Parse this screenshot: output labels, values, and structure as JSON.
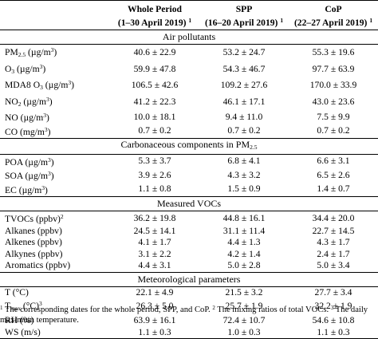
{
  "header": {
    "col1": {
      "title": "Whole Period",
      "sub": "(1–30 April 2019)",
      "note": "1"
    },
    "col2": {
      "title": "SPP",
      "sub": "(16–20 April 2019)",
      "note": "1"
    },
    "col3": {
      "title": "CoP",
      "sub": "(22–27 April 2019)",
      "note": "1"
    }
  },
  "sections": [
    {
      "title": "Air pollutants",
      "rows": [
        {
          "pre": "PM",
          "sub": "2.5",
          "post": " (µg/m",
          "sup": "3",
          "tail": ")",
          "v1": "40.6 ± 22.9",
          "v2": "53.2 ± 24.7",
          "v3": "55.3 ± 19.6"
        },
        {
          "pre": "O",
          "sub": "3",
          "post": " (µg/m",
          "sup": "3",
          "tail": ")",
          "v1": "59.9 ± 47.8",
          "v2": "54.3 ± 46.7",
          "v3": "97.7 ± 63.9"
        },
        {
          "pre": "MDA8 O",
          "sub": "3",
          "post": " (µg/m",
          "sup": "3",
          "tail": ")",
          "v1": "106.5 ± 42.6",
          "v2": "109.2 ± 27.6",
          "v3": "170.0 ± 33.9"
        },
        {
          "pre": "NO",
          "sub": "2",
          "post": " (µg/m",
          "sup": "3",
          "tail": ")",
          "v1": "41.2 ± 22.3",
          "v2": "46.1 ± 17.1",
          "v3": "43.0 ± 23.6"
        },
        {
          "pre": "NO (µg/m",
          "sub": "",
          "post": "",
          "sup": "3",
          "tail": ")",
          "v1": "10.0 ± 18.1",
          "v2": "9.4 ± 11.0",
          "v3": "7.5 ± 9.9"
        },
        {
          "pre": "CO (mg/m",
          "sub": "",
          "post": "",
          "sup": "3",
          "tail": ")",
          "v1": "0.7 ± 0.2",
          "v2": "0.7 ± 0.2",
          "v3": "0.7 ± 0.2"
        }
      ]
    },
    {
      "title_pre": "Carbonaceous components in PM",
      "title_sub": "2.5",
      "rows": [
        {
          "pre": "POA (µg/m",
          "sub": "",
          "post": "",
          "sup": "3",
          "tail": ")",
          "v1": "5.3 ± 3.7",
          "v2": "6.8 ± 4.1",
          "v3": "6.6 ± 3.1"
        },
        {
          "pre": "SOA (µg/m",
          "sub": "",
          "post": "",
          "sup": "3",
          "tail": ")",
          "v1": "3.9 ± 2.6",
          "v2": "4.3 ± 3.2",
          "v3": "6.5 ± 2.6"
        },
        {
          "pre": "EC (µg/m",
          "sub": "",
          "post": "",
          "sup": "3",
          "tail": ")",
          "v1": "1.1 ± 0.8",
          "v2": "1.5 ± 0.9",
          "v3": "1.4 ± 0.7"
        }
      ]
    },
    {
      "title": "Measured VOCs",
      "rows": [
        {
          "pre": "TVOCs (ppbv)",
          "sub": "",
          "post": "",
          "sup": "2",
          "tail": "",
          "v1": "36.2 ± 19.8",
          "v2": "44.8 ± 16.1",
          "v3": "34.4 ± 20.0"
        },
        {
          "pre": "Alkanes (ppbv)",
          "sub": "",
          "post": "",
          "sup": "",
          "tail": "",
          "v1": "24.5 ± 14.1",
          "v2": "31.1 ± 11.4",
          "v3": "22.7 ± 14.5"
        },
        {
          "pre": "Alkenes (ppbv)",
          "sub": "",
          "post": "",
          "sup": "",
          "tail": "",
          "v1": "4.1 ± 1.7",
          "v2": "4.4 ± 1.3",
          "v3": "4.3 ± 1.7"
        },
        {
          "pre": "Alkynes (ppbv)",
          "sub": "",
          "post": "",
          "sup": "",
          "tail": "",
          "v1": "3.1 ± 2.2",
          "v2": "4.2 ± 1.4",
          "v3": "2.4 ± 1.7"
        },
        {
          "pre": "Aromatics (ppbv)",
          "sub": "",
          "post": "",
          "sup": "",
          "tail": "",
          "v1": "4.4 ± 3.1",
          "v2": "5.0 ± 2.8",
          "v3": "5.0 ± 3.4"
        }
      ]
    },
    {
      "title": "Meteorological parameters",
      "rows": [
        {
          "pre": "T (°C)",
          "sub": "",
          "post": "",
          "sup": "",
          "tail": "",
          "v1": "22.1 ± 4.9",
          "v2": "21.5 ± 3.2",
          "v3": "27.7 ± 3.4"
        },
        {
          "pre": "T",
          "sub": "max",
          "post": " (°C)",
          "sup": "3",
          "tail": "",
          "v1": "26.3 ± 5.0",
          "v2": "25.7 ± 1.9",
          "v3": "32.2 ± 1.9"
        },
        {
          "pre": "RH (%)",
          "sub": "",
          "post": "",
          "sup": "",
          "tail": "",
          "v1": "63.9 ± 16.1",
          "v2": "72.4 ± 10.7",
          "v3": "54.6 ± 10.8"
        },
        {
          "pre": "WS (m/s)",
          "sub": "",
          "post": "",
          "sup": "",
          "tail": "",
          "v1": "1.1 ± 0.3",
          "v2": "1.0 ± 0.3",
          "v3": "1.1 ± 0.3"
        }
      ]
    }
  ],
  "footnote": {
    "m1": "1",
    "t1": " The corresponding dates for the whole period, SPP, and CoP. ",
    "m2": "2",
    "t2": " The mixing ratios of total VOCs. ",
    "m3": "3",
    "t3": " The daily maximum temperature."
  }
}
